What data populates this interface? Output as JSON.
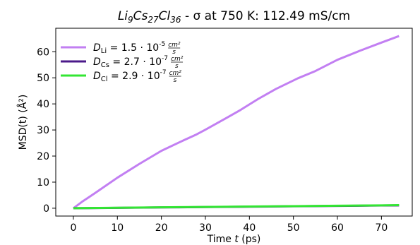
{
  "chart_data": {
    "type": "line",
    "title": {
      "formula_parts": [
        {
          "text": "Li",
          "sub": "9"
        },
        {
          "text": "Cs",
          "sub": "27"
        },
        {
          "text": "Cl",
          "sub": "36"
        }
      ],
      "rest": " - σ at 750 K: 112.49 mS/cm"
    },
    "xlabel": {
      "prefix": "Time ",
      "var": "t",
      "suffix": " (ps)"
    },
    "ylabel": "MSD(t) (Å²)",
    "xlim": [
      -4,
      77
    ],
    "ylim": [
      -3,
      69
    ],
    "xticks": [
      0,
      10,
      20,
      30,
      40,
      50,
      60,
      70
    ],
    "yticks": [
      0,
      10,
      20,
      30,
      40,
      50,
      60
    ],
    "grid": false,
    "legend_position": "top-left",
    "series": [
      {
        "name": "D_Li = 1.5·10⁻⁵ cm²/s",
        "legend": {
          "sym": "D",
          "sub": "Li",
          "value": "1.5",
          "exp": "-5"
        },
        "color": "#c27ff2",
        "x": [
          0,
          2,
          5,
          10,
          15,
          20,
          25,
          28,
          30,
          35,
          38,
          42,
          46,
          51,
          55,
          60,
          65,
          70,
          74
        ],
        "y": [
          0,
          2.5,
          5.9,
          11.7,
          17,
          22,
          26,
          28.3,
          30.1,
          34.8,
          37.7,
          41.9,
          45.7,
          49.8,
          52.6,
          56.9,
          60.3,
          63.5,
          66
        ]
      },
      {
        "name": "D_Cs = 2.7·10⁻⁷ cm²/s",
        "legend": {
          "sym": "D",
          "sub": "Cs",
          "value": "2.7",
          "exp": "-7"
        },
        "color": "#4b1a8a",
        "x": [
          0,
          10,
          20,
          30,
          40,
          50,
          60,
          70,
          74
        ],
        "y": [
          0,
          0.15,
          0.3,
          0.45,
          0.6,
          0.75,
          0.9,
          1.05,
          1.1
        ]
      },
      {
        "name": "D_Cl = 2.9·10⁻⁷ cm²/s",
        "legend": {
          "sym": "D",
          "sub": "Cl",
          "value": "2.9",
          "exp": "-7"
        },
        "color": "#33e633",
        "x": [
          0,
          10,
          20,
          30,
          40,
          50,
          60,
          70,
          74
        ],
        "y": [
          0,
          0.18,
          0.35,
          0.5,
          0.65,
          0.8,
          0.95,
          1.1,
          1.2
        ]
      }
    ],
    "legend_units": {
      "num": "cm²",
      "den": "s"
    }
  }
}
